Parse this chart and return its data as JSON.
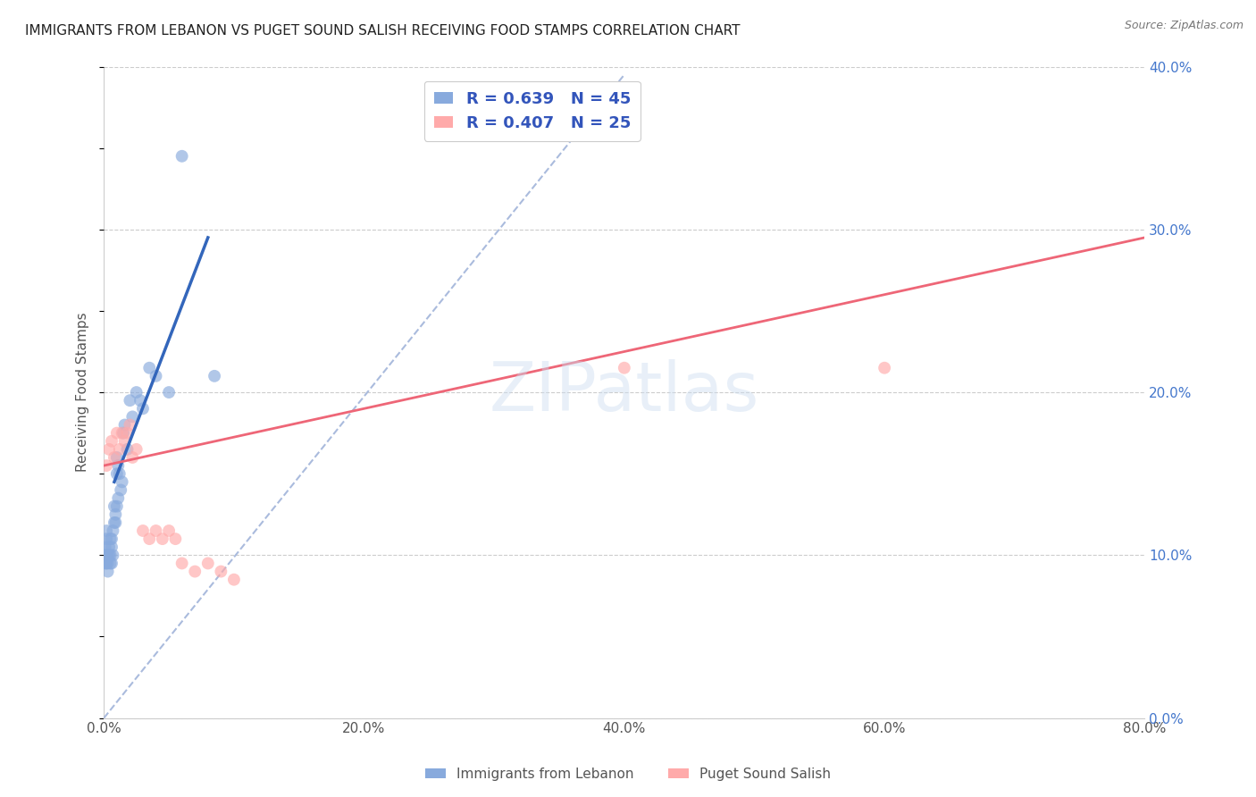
{
  "title": "IMMIGRANTS FROM LEBANON VS PUGET SOUND SALISH RECEIVING FOOD STAMPS CORRELATION CHART",
  "source": "Source: ZipAtlas.com",
  "ylabel": "Receiving Food Stamps",
  "legend_label1": "R = 0.639   N = 45",
  "legend_label2": "R = 0.407   N = 25",
  "legend_label_blue": "Immigrants from Lebanon",
  "legend_label_pink": "Puget Sound Salish",
  "color_blue": "#88AADD",
  "color_blue_line": "#3366BB",
  "color_pink": "#FFAAAA",
  "color_pink_line": "#EE6677",
  "color_dashed": "#AABBDD",
  "watermark": "ZIPatlas",
  "watermark_color": "#CCDDEEFF",
  "xlim": [
    0.0,
    0.8
  ],
  "ylim": [
    0.0,
    0.4
  ],
  "xticks": [
    0.0,
    0.2,
    0.4,
    0.6,
    0.8
  ],
  "yticks": [
    0.0,
    0.1,
    0.2,
    0.3,
    0.4
  ],
  "blue_scatter_x": [
    0.001,
    0.001,
    0.001,
    0.002,
    0.002,
    0.002,
    0.002,
    0.003,
    0.003,
    0.003,
    0.004,
    0.004,
    0.005,
    0.005,
    0.005,
    0.006,
    0.006,
    0.006,
    0.007,
    0.007,
    0.008,
    0.008,
    0.009,
    0.009,
    0.01,
    0.01,
    0.01,
    0.011,
    0.011,
    0.012,
    0.013,
    0.014,
    0.015,
    0.016,
    0.018,
    0.02,
    0.022,
    0.025,
    0.028,
    0.03,
    0.035,
    0.04,
    0.05,
    0.06,
    0.085
  ],
  "blue_scatter_y": [
    0.095,
    0.1,
    0.105,
    0.095,
    0.1,
    0.11,
    0.115,
    0.09,
    0.095,
    0.1,
    0.1,
    0.105,
    0.095,
    0.1,
    0.11,
    0.095,
    0.105,
    0.11,
    0.1,
    0.115,
    0.12,
    0.13,
    0.12,
    0.125,
    0.13,
    0.15,
    0.16,
    0.135,
    0.155,
    0.15,
    0.14,
    0.145,
    0.175,
    0.18,
    0.165,
    0.195,
    0.185,
    0.2,
    0.195,
    0.19,
    0.215,
    0.21,
    0.2,
    0.345,
    0.21
  ],
  "pink_scatter_x": [
    0.002,
    0.004,
    0.006,
    0.008,
    0.01,
    0.012,
    0.014,
    0.016,
    0.018,
    0.02,
    0.022,
    0.025,
    0.03,
    0.035,
    0.04,
    0.045,
    0.05,
    0.055,
    0.06,
    0.07,
    0.08,
    0.09,
    0.1,
    0.4,
    0.6
  ],
  "pink_scatter_y": [
    0.155,
    0.165,
    0.17,
    0.16,
    0.175,
    0.165,
    0.175,
    0.17,
    0.175,
    0.18,
    0.16,
    0.165,
    0.115,
    0.11,
    0.115,
    0.11,
    0.115,
    0.11,
    0.095,
    0.09,
    0.095,
    0.09,
    0.085,
    0.215,
    0.215
  ],
  "blue_line_x": [
    0.008,
    0.08
  ],
  "blue_line_y": [
    0.145,
    0.295
  ],
  "pink_line_x": [
    0.0,
    0.8
  ],
  "pink_line_y": [
    0.155,
    0.295
  ],
  "dashed_line_x": [
    0.0,
    0.4
  ],
  "dashed_line_y": [
    0.0,
    0.395
  ]
}
